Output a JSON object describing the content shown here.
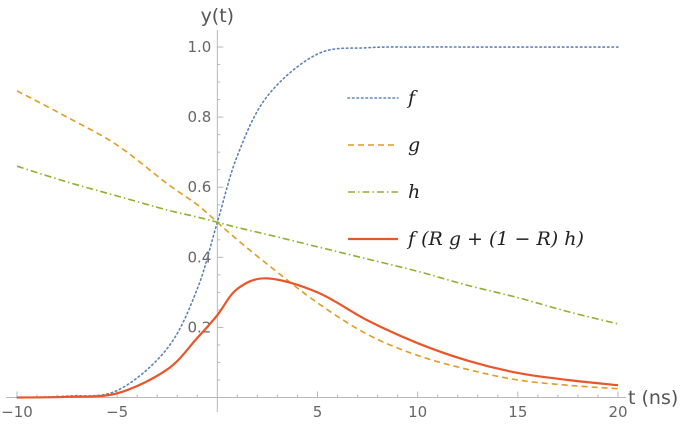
{
  "chart_data": {
    "type": "line",
    "xlabel": "t (ns)",
    "ylabel": "y(t)",
    "xlim": [
      -10,
      20
    ],
    "ylim": [
      0,
      1.05
    ],
    "x_ticks": [
      -10,
      -5,
      5,
      10,
      15,
      20
    ],
    "x_tick_labels": [
      "−10",
      "−5",
      "5",
      "10",
      "15",
      "20"
    ],
    "y_ticks": [
      0.2,
      0.4,
      0.6,
      0.8,
      1.0
    ],
    "y_tick_labels": [
      "0.2",
      "0.4",
      "0.6",
      "0.8",
      "1.0"
    ],
    "grid": false,
    "legend_position": "top-right",
    "x": [
      -10,
      -7.5,
      -5,
      -2.5,
      -1,
      0,
      1,
      2.5,
      5,
      7.5,
      10,
      12.5,
      15,
      17.5,
      20
    ],
    "series": [
      {
        "name": "f",
        "color": "#5e81b5",
        "dash": "dotted",
        "values": [
          0.0,
          0.004,
          0.02,
          0.14,
          0.31,
          0.5,
          0.69,
          0.86,
          0.98,
          0.998,
          1.0,
          1.0,
          1.0,
          1.0,
          1.0
        ]
      },
      {
        "name": "g",
        "color": "#e19c24",
        "dash": "dashed",
        "values": [
          0.875,
          0.8,
          0.72,
          0.61,
          0.55,
          0.5,
          0.45,
          0.38,
          0.27,
          0.18,
          0.12,
          0.08,
          0.05,
          0.035,
          0.025
        ]
      },
      {
        "name": "h",
        "color": "#8fb032",
        "dash": "dashdot",
        "values": [
          0.66,
          0.615,
          0.575,
          0.535,
          0.515,
          0.5,
          0.485,
          0.465,
          0.43,
          0.395,
          0.36,
          0.32,
          0.285,
          0.245,
          0.21
        ]
      },
      {
        "name": "f (R g + (1 − R) h)",
        "color": "#e8562a",
        "dash": "solid",
        "values": [
          0.0,
          0.002,
          0.012,
          0.08,
          0.17,
          0.235,
          0.31,
          0.34,
          0.3,
          0.22,
          0.155,
          0.105,
          0.07,
          0.05,
          0.035
        ]
      }
    ]
  }
}
